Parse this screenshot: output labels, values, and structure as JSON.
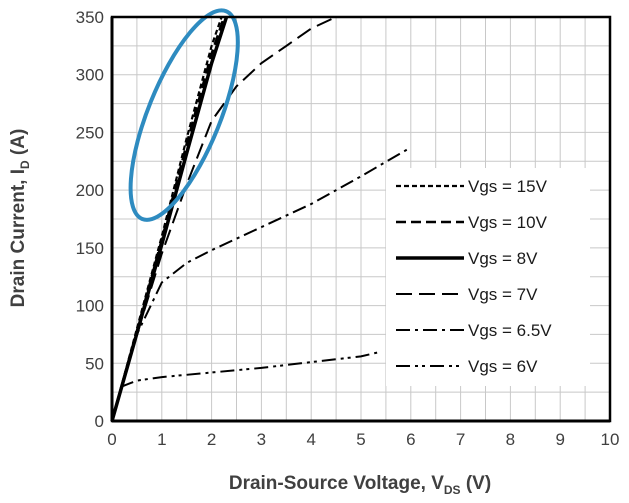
{
  "chart_data": {
    "type": "line",
    "title": "",
    "xlabel": {
      "main": "Drain-Source Voltage, V",
      "sub": "DS",
      "suffix": " (V)"
    },
    "ylabel": {
      "main": "Drain Current, I",
      "sub": "D",
      "suffix": " (A)"
    },
    "xlim": [
      0,
      10
    ],
    "ylim": [
      0,
      350
    ],
    "xticks": [
      0,
      1,
      2,
      3,
      4,
      5,
      6,
      7,
      8,
      9,
      10
    ],
    "yticks": [
      0,
      50,
      100,
      150,
      200,
      250,
      300,
      350
    ],
    "xtick_labels": [
      "0",
      "1",
      "2",
      "3",
      "4",
      "5",
      "6",
      "7",
      "8",
      "9",
      "10"
    ],
    "ytick_labels": [
      "0",
      "50",
      "100",
      "150",
      "200",
      "250",
      "300",
      "350"
    ],
    "grid": true,
    "legend_position": "right",
    "series": [
      {
        "name": "Vgs = 15V",
        "dash": "short-dash",
        "x": [
          0,
          0.5,
          1.0,
          1.5,
          2.0,
          2.2
        ],
        "y": [
          0,
          80,
          160,
          245,
          325,
          350
        ]
      },
      {
        "name": "Vgs = 10V",
        "dash": "dash",
        "x": [
          0,
          0.5,
          1.0,
          1.5,
          2.0,
          2.25
        ],
        "y": [
          0,
          78,
          157,
          240,
          318,
          350
        ]
      },
      {
        "name": "Vgs = 8V",
        "dash": "solid",
        "x": [
          0,
          0.5,
          1.0,
          1.5,
          2.0,
          2.3
        ],
        "y": [
          0,
          76,
          153,
          232,
          310,
          350
        ]
      },
      {
        "name": "Vgs = 7V",
        "dash": "long-dash",
        "x": [
          0,
          0.5,
          1.0,
          1.5,
          2.0,
          2.5,
          3.0,
          3.5,
          4.0,
          4.5
        ],
        "y": [
          0,
          75,
          145,
          205,
          260,
          290,
          310,
          325,
          340,
          350
        ]
      },
      {
        "name": "Vgs = 6.5V",
        "dash": "dash-dot",
        "x": [
          0,
          0.5,
          1.0,
          1.5,
          2.0,
          3.0,
          4.0,
          5.0,
          6.0
        ],
        "y": [
          0,
          75,
          120,
          137,
          148,
          168,
          188,
          212,
          237
        ]
      },
      {
        "name": "Vgs = 6V",
        "dash": "dash-dot-dot",
        "x": [
          0,
          0.2,
          0.5,
          1.0,
          2.0,
          3.0,
          4.0,
          5.0,
          5.4
        ],
        "y": [
          0,
          30,
          35,
          38,
          42,
          46,
          51,
          56,
          60
        ]
      }
    ],
    "annotations": [
      {
        "type": "ellipse",
        "color": "#2e8bc0",
        "note": "highlights steep linear region near Vds 0.6-2.4 V, Id 170-355 A"
      }
    ]
  },
  "colors": {
    "lines": "#000000",
    "grid": "#c8c8c8",
    "highlight": "#2e8bc0"
  }
}
